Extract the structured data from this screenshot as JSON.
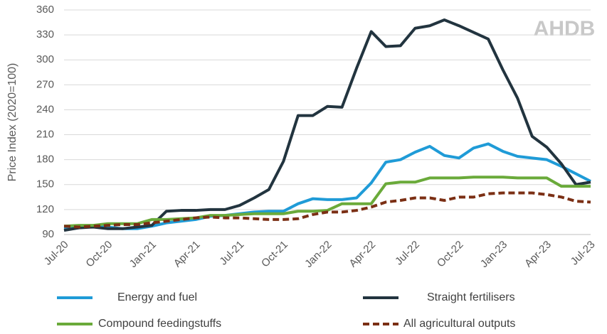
{
  "chart_data": {
    "type": "line",
    "logo": "AHDB",
    "y_label": "Price Index (2020=100)",
    "categories": [
      "Jul-20",
      null,
      null,
      "Oct-20",
      null,
      null,
      "Jan-21",
      null,
      null,
      "Apr-21",
      null,
      null,
      "Jul-21",
      null,
      null,
      "Oct-21",
      null,
      null,
      "Jan-22",
      null,
      null,
      "Apr-22",
      null,
      null,
      "Jul-22",
      null,
      null,
      "Oct-22",
      null,
      null,
      "Jan-23",
      null,
      null,
      "Apr-23",
      null,
      null,
      "Jul-23"
    ],
    "series": [
      {
        "name": "Energy and fuel",
        "color": "#1f9bd7",
        "dashed": false,
        "values": [
          97,
          98,
          100,
          99,
          97,
          97,
          100,
          104,
          106,
          108,
          112,
          113,
          115,
          117,
          118,
          118,
          127,
          133,
          132,
          132,
          134,
          152,
          177,
          180,
          189,
          196,
          185,
          182,
          194,
          199,
          190,
          184,
          182,
          180,
          172,
          163,
          154
        ]
      },
      {
        "name": "Straight fertilisers",
        "color": "#22343f",
        "dashed": false,
        "values": [
          95,
          98,
          99,
          97,
          97,
          99,
          101,
          118,
          119,
          119,
          120,
          120,
          125,
          134,
          144,
          178,
          233,
          233,
          244,
          243,
          290,
          334,
          316,
          317,
          338,
          341,
          348,
          341,
          333,
          325,
          288,
          254,
          208,
          195,
          175,
          150,
          153
        ]
      },
      {
        "name": "Compound feedingstuffs",
        "color": "#6aaa3a",
        "dashed": false,
        "values": [
          100,
          101,
          101,
          103,
          103,
          103,
          108,
          108,
          109,
          110,
          113,
          113,
          114,
          115,
          115,
          115,
          118,
          118,
          119,
          127,
          127,
          127,
          151,
          153,
          153,
          158,
          158,
          158,
          159,
          159,
          159,
          158,
          158,
          158,
          148,
          148,
          148
        ]
      },
      {
        "name": "All agricultural outputs",
        "color": "#7b2f14",
        "dashed": true,
        "values": [
          100,
          99,
          100,
          101,
          102,
          102,
          104,
          106,
          108,
          110,
          111,
          110,
          110,
          109,
          108,
          108,
          109,
          114,
          117,
          117,
          119,
          123,
          129,
          131,
          134,
          134,
          131,
          135,
          135,
          139,
          140,
          140,
          140,
          138,
          135,
          130,
          129
        ]
      }
    ],
    "ylim": [
      90,
      360
    ],
    "yticks": [
      90,
      120,
      150,
      180,
      210,
      240,
      270,
      300,
      330,
      360
    ],
    "grid": true
  }
}
